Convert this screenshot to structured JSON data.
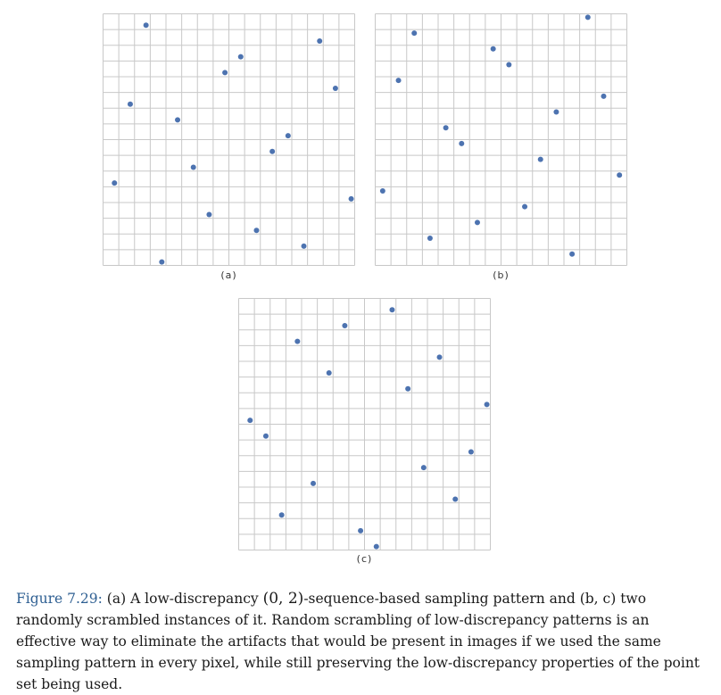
{
  "figure": {
    "label": "Figure 7.29:",
    "caption_before": " (a) A low-discrepancy ",
    "caption_math": "(0, 2)",
    "caption_after": "-sequence-based sampling pattern and (b, c) two randomly scrambled instances of it. Random scrambling of low-discrepancy patterns is an effective way to eliminate the artifacts that would be present in images if we used the same sampling pattern in every pixel, while still preserving the low-discrepancy properties of the point set being used."
  },
  "colors": {
    "grid": "#c8c8c8",
    "point": "#4d73b0"
  },
  "chart_data": [
    {
      "type": "scatter",
      "label": "(a)",
      "grid": true,
      "grid_divisions": 16,
      "xlim": [
        0,
        1
      ],
      "ylim": [
        0,
        1
      ],
      "points": [
        [
          0.0469,
          0.3281
        ],
        [
          0.1094,
          0.6406
        ],
        [
          0.1719,
          0.9531
        ],
        [
          0.2344,
          0.0156
        ],
        [
          0.2969,
          0.5781
        ],
        [
          0.3594,
          0.3906
        ],
        [
          0.4219,
          0.2031
        ],
        [
          0.4844,
          0.7656
        ],
        [
          0.5469,
          0.8281
        ],
        [
          0.6094,
          0.1406
        ],
        [
          0.6719,
          0.4531
        ],
        [
          0.7344,
          0.5156
        ],
        [
          0.7969,
          0.0781
        ],
        [
          0.8594,
          0.8906
        ],
        [
          0.9219,
          0.7031
        ],
        [
          0.9844,
          0.2656
        ]
      ]
    },
    {
      "type": "scatter",
      "label": "(b)",
      "grid": true,
      "grid_divisions": 16,
      "xlim": [
        0,
        1
      ],
      "ylim": [
        0,
        1
      ],
      "points": [
        [
          0.0313,
          0.2969
        ],
        [
          0.0938,
          0.7344
        ],
        [
          0.1563,
          0.9219
        ],
        [
          0.2188,
          0.1094
        ],
        [
          0.2813,
          0.5469
        ],
        [
          0.3438,
          0.4844
        ],
        [
          0.4063,
          0.1719
        ],
        [
          0.4688,
          0.8594
        ],
        [
          0.5313,
          0.7969
        ],
        [
          0.5938,
          0.2344
        ],
        [
          0.6563,
          0.4219
        ],
        [
          0.7188,
          0.6094
        ],
        [
          0.7813,
          0.0469
        ],
        [
          0.8438,
          0.9844
        ],
        [
          0.9063,
          0.6719
        ],
        [
          0.9688,
          0.3594
        ]
      ]
    },
    {
      "type": "scatter",
      "label": "(c)",
      "grid": true,
      "grid_divisions": 16,
      "xlim": [
        0,
        1
      ],
      "ylim": [
        0,
        1
      ],
      "points": [
        [
          0.0469,
          0.5156
        ],
        [
          0.1094,
          0.4531
        ],
        [
          0.1719,
          0.1406
        ],
        [
          0.2344,
          0.8281
        ],
        [
          0.2969,
          0.2656
        ],
        [
          0.3594,
          0.7031
        ],
        [
          0.4219,
          0.8906
        ],
        [
          0.4844,
          0.0781
        ],
        [
          0.5469,
          0.0156
        ],
        [
          0.6094,
          0.9531
        ],
        [
          0.6719,
          0.6406
        ],
        [
          0.7344,
          0.3281
        ],
        [
          0.7969,
          0.7656
        ],
        [
          0.8594,
          0.2031
        ],
        [
          0.9219,
          0.3906
        ],
        [
          0.9844,
          0.5781
        ]
      ]
    }
  ]
}
